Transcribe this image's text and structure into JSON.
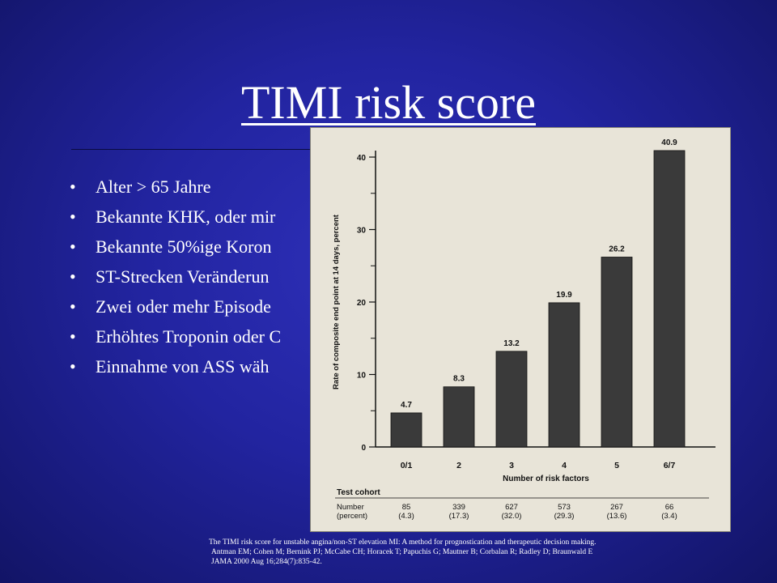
{
  "slide": {
    "title": "TIMI risk score",
    "bullets": [
      "Alter > 65 Jahre",
      "Bekannte KHK, oder mir",
      "Bekannte 50%ige Koron",
      "ST-Strecken Veränderun",
      "Zwei oder mehr Episode",
      "Erhöhtes Troponin oder C",
      "Einnahme von ASS wäh"
    ],
    "bullet_symbol": "•",
    "citation": [
      "The TIMI risk score for unstable angina/non-ST elevation MI: A method for prognostication and therapeutic decision making.",
      "Antman EM; Cohen M; Bernink PJ; McCabe CH; Horacek T; Papuchis G; Mautner B; Corbalan R; Radley D; Braunwald E",
      "JAMA 2000 Aug 16;284(7):835-42."
    ]
  },
  "colors": {
    "background": "#2224a0",
    "text": "#ffffff",
    "figure_bg": "#e8e4d8",
    "bar": "#3a3a3a"
  },
  "chart_data": {
    "type": "bar",
    "categories": [
      "0/1",
      "2",
      "3",
      "4",
      "5",
      "6/7"
    ],
    "values": [
      4.7,
      8.3,
      13.2,
      19.9,
      26.2,
      40.9
    ],
    "value_labels": [
      "4.7",
      "8.3",
      "13.2",
      "19.9",
      "26.2",
      "40.9"
    ],
    "xlabel": "Number of risk factors",
    "ylabel": "Rate of composite end point at 14 days, percent",
    "ylim": [
      0,
      40
    ],
    "yticks": [
      0,
      10,
      20,
      30,
      40
    ],
    "grid": false,
    "table": {
      "title": "Test cohort",
      "row_label_1": "Number",
      "row_label_2": "(percent)",
      "numbers": [
        "85",
        "339",
        "627",
        "573",
        "267",
        "66"
      ],
      "percents": [
        "(4.3)",
        "(17.3)",
        "(32.0)",
        "(29.3)",
        "(13.6)",
        "(3.4)"
      ]
    }
  }
}
